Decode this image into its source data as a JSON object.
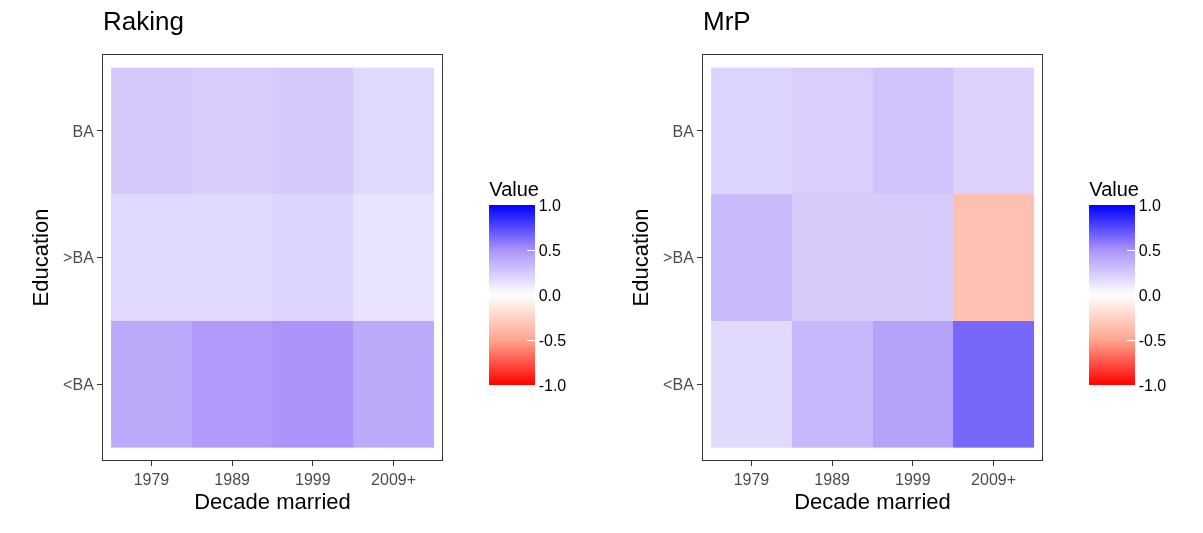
{
  "chart_data": [
    {
      "type": "heatmap",
      "title": "Raking",
      "xlabel": "Decade married",
      "ylabel": "Education",
      "clabel": "Value",
      "categories": [
        "1979",
        "1989",
        "1999",
        "2009+"
      ],
      "y_categories": [
        "BA",
        ">BA",
        "<BA"
      ],
      "cells": [
        [
          0.25,
          0.23,
          0.25,
          0.18
        ],
        [
          0.18,
          0.17,
          0.2,
          0.13
        ],
        [
          0.4,
          0.47,
          0.5,
          0.4
        ]
      ],
      "clim": [
        -1,
        1
      ],
      "cticks": [
        {
          "value": -1,
          "label": "-1.0"
        },
        {
          "value": -0.5,
          "label": "-0.5"
        },
        {
          "value": 0,
          "label": "0.0"
        },
        {
          "value": 0.5,
          "label": "0.5"
        },
        {
          "value": 1,
          "label": "1.0"
        }
      ]
    },
    {
      "type": "heatmap",
      "title": "MrP",
      "xlabel": "Decade married",
      "ylabel": "Education",
      "clabel": "Value",
      "categories": [
        "1979",
        "1989",
        "1999",
        "2009+"
      ],
      "y_categories": [
        "BA",
        ">BA",
        "<BA"
      ],
      "cells": [
        [
          0.2,
          0.22,
          0.28,
          0.21
        ],
        [
          0.32,
          0.24,
          0.24,
          -0.35
        ],
        [
          0.17,
          0.33,
          0.43,
          0.65
        ]
      ],
      "clim": [
        -1,
        1
      ],
      "cticks": [
        {
          "value": -1,
          "label": "-1.0"
        },
        {
          "value": -0.5,
          "label": "-0.5"
        },
        {
          "value": 0,
          "label": "0.0"
        },
        {
          "value": 0.5,
          "label": "0.5"
        },
        {
          "value": 1,
          "label": "1.0"
        }
      ]
    }
  ]
}
